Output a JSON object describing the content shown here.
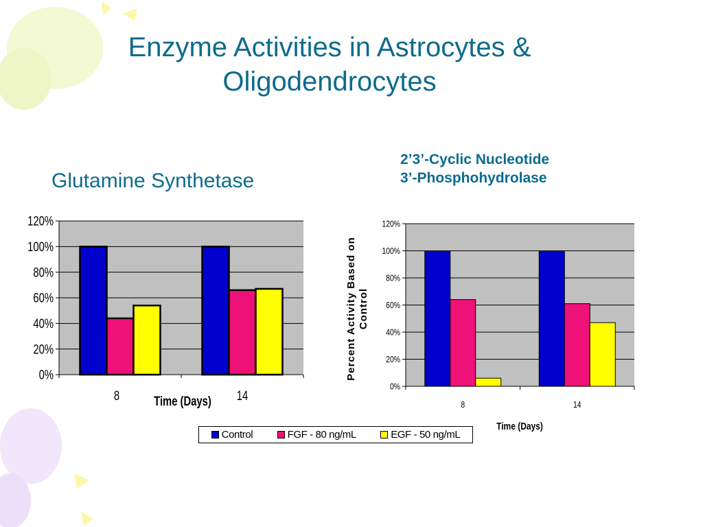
{
  "slide": {
    "title_line1": "Enzyme Activities in Astrocytes &",
    "title_line2": "Oligodendrocytes"
  },
  "chart_left": {
    "heading": "Glutamine Synthetase"
  },
  "chart_right": {
    "heading_line1": "2’3’-Cyclic Nucleotide",
    "heading_line2": "3’-Phosphohydrolase"
  },
  "legend": {
    "items": [
      {
        "label": "Control",
        "color": "#0000cc"
      },
      {
        "label": "FGF - 80 ng/mL",
        "color": "#ee1177"
      },
      {
        "label": "EGF - 50 ng/mL",
        "color": "#ffff00"
      }
    ]
  },
  "colors": {
    "plot_background": "#c0c0c0",
    "series": [
      "#0000cc",
      "#ee1177",
      "#ffff00"
    ]
  },
  "chart_data": [
    {
      "type": "bar",
      "title": "Glutamine Synthetase",
      "categories": [
        "8",
        "14"
      ],
      "series": [
        {
          "name": "Control",
          "values": [
            100,
            100
          ]
        },
        {
          "name": "FGF - 80 ng/mL",
          "values": [
            44,
            66
          ]
        },
        {
          "name": "EGF - 50 ng/mL",
          "values": [
            54,
            67
          ]
        }
      ],
      "xlabel": "Time (Days)",
      "ylabel": "",
      "ylim": [
        0,
        120
      ],
      "yticks": [
        "0%",
        "20%",
        "40%",
        "60%",
        "80%",
        "100%",
        "120%"
      ],
      "grid": true,
      "legend": "bottom"
    },
    {
      "type": "bar",
      "title": "2’3’-Cyclic Nucleotide 3’-Phosphohydrolase",
      "categories": [
        "8",
        "14"
      ],
      "series": [
        {
          "name": "Control",
          "values": [
            100,
            100
          ]
        },
        {
          "name": "FGF - 80 ng/mL",
          "values": [
            64,
            61
          ]
        },
        {
          "name": "EGF - 50 ng/mL",
          "values": [
            6,
            47
          ]
        }
      ],
      "xlabel": "Time (Days)",
      "ylabel_line1": "Percent Activity Based on",
      "ylabel_line2": "Control",
      "ylim": [
        0,
        120
      ],
      "yticks": [
        "0%",
        "20%",
        "40%",
        "60%",
        "80%",
        "100%",
        "120%"
      ],
      "grid": true,
      "legend": "bottom"
    }
  ]
}
